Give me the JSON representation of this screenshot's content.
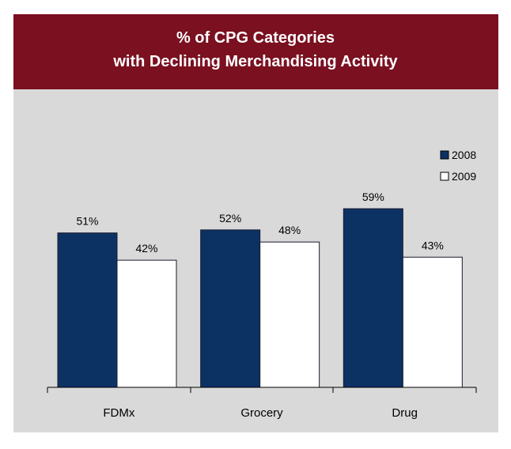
{
  "chart_data": {
    "type": "bar",
    "title": [
      "% of CPG Categories",
      "with Declining Merchandising Activity"
    ],
    "categories": [
      "FDMx",
      "Grocery",
      "Drug"
    ],
    "series": [
      {
        "name": "2008",
        "color": "#0c3264",
        "values": [
          51,
          52,
          59
        ],
        "value_labels": [
          "51%",
          "52%",
          "59%"
        ]
      },
      {
        "name": "2009",
        "color": "#ffffff",
        "values": [
          42,
          48,
          43
        ],
        "value_labels": [
          "42%",
          "48%",
          "43%"
        ]
      }
    ],
    "legend": "upper right"
  }
}
